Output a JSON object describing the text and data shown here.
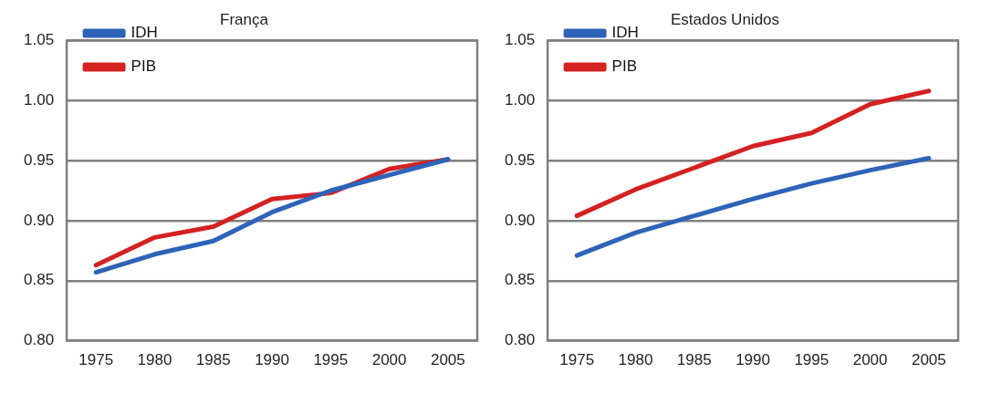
{
  "chart_data": [
    {
      "type": "line",
      "title": "França",
      "categories": [
        "1975",
        "1980",
        "1985",
        "1990",
        "1995",
        "2000",
        "2005"
      ],
      "ylim": [
        0.8,
        1.05
      ],
      "yticks": [
        {
          "value": 0.8,
          "label": "0.80"
        },
        {
          "value": 0.85,
          "label": "0.85"
        },
        {
          "value": 0.9,
          "label": "0.90"
        },
        {
          "value": 0.95,
          "label": "0.95"
        },
        {
          "value": 1.0,
          "label": "1.00"
        },
        {
          "value": 1.05,
          "label": "1.05"
        }
      ],
      "grid": "y",
      "legend": "top left",
      "marker": "none",
      "series": [
        {
          "name": "IDH",
          "color": "#2e63b8",
          "values": [
            0.857,
            0.872,
            0.883,
            0.907,
            0.925,
            0.938,
            0.951
          ]
        },
        {
          "name": "PIB",
          "color": "#d42222",
          "values": [
            0.863,
            0.886,
            0.895,
            0.918,
            0.923,
            0.943,
            0.951
          ]
        }
      ]
    },
    {
      "type": "line",
      "title": "Estados Unidos",
      "categories": [
        "1975",
        "1980",
        "1985",
        "1990",
        "1995",
        "2000",
        "2005"
      ],
      "ylim": [
        0.8,
        1.05
      ],
      "yticks": [
        {
          "value": 0.8,
          "label": "0.80"
        },
        {
          "value": 0.85,
          "label": "0.85"
        },
        {
          "value": 0.9,
          "label": "0.90"
        },
        {
          "value": 0.95,
          "label": "0.95"
        },
        {
          "value": 1.0,
          "label": "1.00"
        },
        {
          "value": 1.05,
          "label": "1.05"
        }
      ],
      "grid": "y",
      "legend": "top left",
      "marker": "none",
      "series": [
        {
          "name": "IDH",
          "color": "#2e63b8",
          "values": [
            0.871,
            0.89,
            0.904,
            0.918,
            0.931,
            0.942,
            0.952
          ]
        },
        {
          "name": "PIB",
          "color": "#d42222",
          "values": [
            0.904,
            0.926,
            0.944,
            0.962,
            0.973,
            0.997,
            1.008
          ]
        }
      ]
    }
  ]
}
